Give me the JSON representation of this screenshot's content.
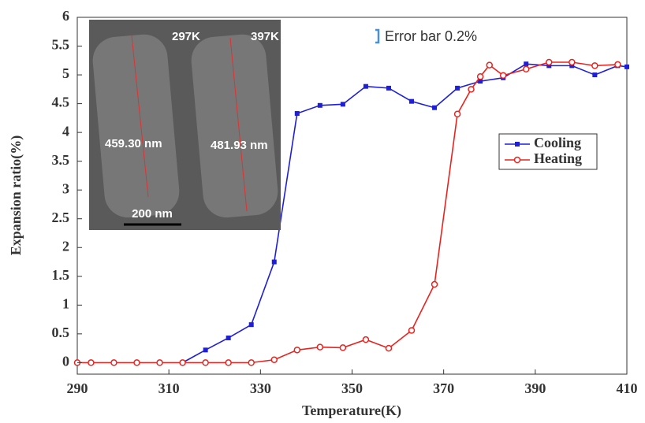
{
  "chart_data": {
    "type": "line",
    "x_label": "Temperature(K)",
    "y_label": "Expansion ratio(%)",
    "xlim": [
      290,
      410
    ],
    "xticks": [
      290,
      310,
      330,
      350,
      370,
      390,
      410
    ],
    "ylim": [
      -0.2,
      6
    ],
    "yticks": [
      0,
      0.5,
      1,
      1.5,
      2,
      2.5,
      3,
      3.5,
      4,
      4.5,
      5,
      5.5,
      6
    ],
    "grid": false,
    "legend": "right",
    "series": [
      {
        "name": "Cooling",
        "color": "#1f1fd6",
        "marker": "square",
        "x": [
          313,
          318,
          323,
          328,
          333,
          338,
          343,
          348,
          353,
          358,
          363,
          368,
          373,
          378,
          383,
          388,
          393,
          398,
          403,
          408,
          410
        ],
        "values": [
          0,
          0.22,
          0.43,
          0.66,
          1.75,
          4.33,
          4.47,
          4.49,
          4.8,
          4.77,
          4.54,
          4.43,
          4.77,
          4.89,
          4.95,
          5.19,
          5.16,
          5.16,
          5.0,
          5.16,
          5.14
        ]
      },
      {
        "name": "Heating",
        "color": "#e8231f",
        "marker": "circle",
        "x": [
          290,
          293,
          298,
          303,
          308,
          313,
          318,
          323,
          328,
          333,
          338,
          343,
          348,
          353,
          358,
          363,
          368,
          373,
          376,
          378,
          380,
          383,
          388,
          393,
          398,
          403,
          408
        ],
        "values": [
          0,
          0,
          0,
          0,
          0,
          0,
          0,
          0,
          0,
          0.05,
          0.22,
          0.27,
          0.26,
          0.4,
          0.25,
          0.56,
          1.36,
          4.32,
          4.75,
          4.97,
          5.17,
          4.99,
          5.1,
          5.22,
          5.22,
          5.16,
          5.18
        ]
      }
    ],
    "annotations": [
      "Error bar 0.2%"
    ],
    "inset": {
      "temperatures": [
        "297K",
        "397K"
      ],
      "lengths": [
        "459.30 nm",
        "481.93 nm"
      ],
      "scale_bar": "200 nm"
    }
  }
}
